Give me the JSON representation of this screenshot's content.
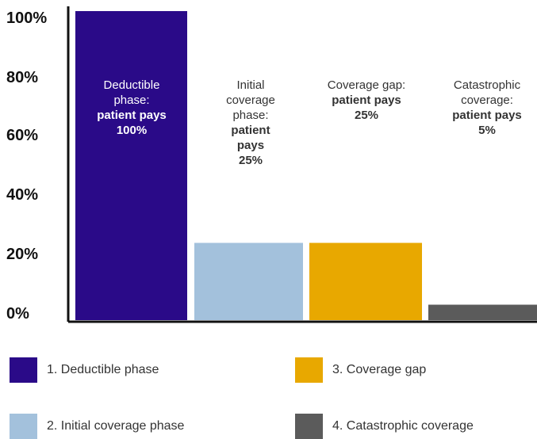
{
  "chart_data": {
    "type": "bar",
    "categories": [
      "1. Deductible phase",
      "2. Initial coverage phase",
      "3. Coverage gap",
      "4. Catastrophic coverage"
    ],
    "values": [
      100,
      25,
      25,
      5
    ],
    "colors": [
      "#2a0a88",
      "#a3c1dc",
      "#e8a800",
      "#5b5b5b"
    ],
    "bar_label_colors": [
      "#ffffff",
      "#333333",
      "#333333",
      "#333333"
    ],
    "bar_labels": [
      {
        "lines": [
          {
            "text": "Deductible",
            "bold": false
          },
          {
            "text": "phase:",
            "bold": false
          },
          {
            "text": "patient pays",
            "bold": true
          },
          {
            "text": "100%",
            "bold": true
          }
        ]
      },
      {
        "lines": [
          {
            "text": "Initial",
            "bold": false
          },
          {
            "text": "coverage",
            "bold": false
          },
          {
            "text": "phase:",
            "bold": false
          },
          {
            "text": "patient",
            "bold": true
          },
          {
            "text": "pays",
            "bold": true
          },
          {
            "text": "25%",
            "bold": true
          }
        ]
      },
      {
        "lines": [
          {
            "text": "Coverage gap:",
            "bold": false
          },
          {
            "text": "patient pays",
            "bold": true
          },
          {
            "text": "25%",
            "bold": true
          }
        ]
      },
      {
        "lines": [
          {
            "text": "Catastrophic",
            "bold": false
          },
          {
            "text": "coverage:",
            "bold": false
          },
          {
            "text": "patient pays",
            "bold": true
          },
          {
            "text": "5%",
            "bold": true
          }
        ]
      }
    ],
    "y_ticks": [
      "0%",
      "20%",
      "40%",
      "60%",
      "80%",
      "100%"
    ],
    "ylim": [
      0,
      100
    ],
    "grid": false,
    "legend_position": "bottom"
  }
}
